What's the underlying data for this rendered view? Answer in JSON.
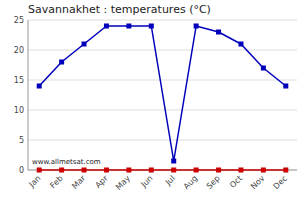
{
  "chart_data": {
    "type": "line",
    "title": "Savannakhet : temperatures (°C)",
    "categories": [
      "Jan",
      "Feb",
      "Mar",
      "Apr",
      "May",
      "Jun",
      "Jul",
      "Aug",
      "Sep",
      "Oct",
      "Nov",
      "Dec"
    ],
    "series": [
      {
        "color": "#0000bb",
        "marker": "square",
        "line_style": "solid",
        "values": [
          14,
          18,
          21,
          24,
          24,
          24,
          1.5,
          24,
          23,
          21,
          17,
          14
        ]
      },
      {
        "color": "#cc0000",
        "marker": "square",
        "line_style": "solid",
        "values": [
          0,
          0,
          0,
          0,
          0,
          0,
          0,
          0,
          0,
          0,
          0,
          0
        ]
      }
    ],
    "ylim": [
      0,
      25
    ],
    "yticks": [
      0,
      5,
      10,
      15,
      20,
      25
    ],
    "grid": true,
    "annotations": [
      "www.allmetsat.com"
    ]
  }
}
